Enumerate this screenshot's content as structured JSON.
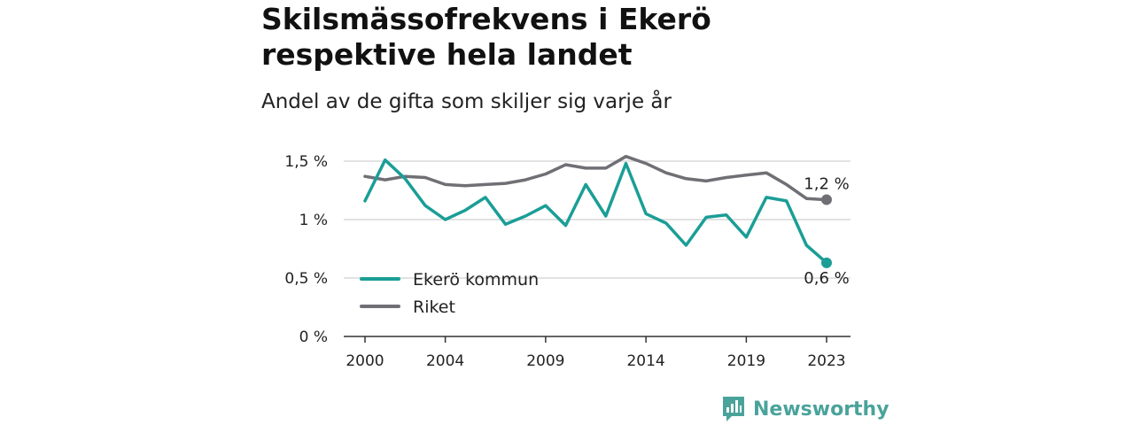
{
  "chart_data": {
    "type": "line",
    "title": "Skilsmässofrekvens i Ekerö respektive hela landet",
    "subtitle": "Andel av de gifta som skiljer sig varje år",
    "x": [
      2000,
      2001,
      2002,
      2003,
      2004,
      2005,
      2006,
      2007,
      2008,
      2009,
      2010,
      2011,
      2012,
      2013,
      2014,
      2015,
      2016,
      2017,
      2018,
      2019,
      2020,
      2021,
      2022,
      2023
    ],
    "x_ticks": [
      2000,
      2004,
      2009,
      2014,
      2019,
      2023
    ],
    "x_tick_labels": [
      "2000",
      "2004",
      "2009",
      "2014",
      "2019",
      "2023"
    ],
    "y_ticks": [
      0,
      0.5,
      1,
      1.5
    ],
    "y_tick_labels": [
      "0 %",
      "0,5 %",
      "1 %",
      "1,5 %"
    ],
    "ylim": [
      0,
      1.5
    ],
    "grid": true,
    "legend_position": "bottom-left",
    "series": [
      {
        "name": "Ekerö kommun",
        "color": "#1a9e96",
        "values": [
          1.16,
          1.51,
          1.35,
          1.12,
          1.0,
          1.08,
          1.19,
          0.96,
          1.03,
          1.12,
          0.95,
          1.3,
          1.03,
          1.48,
          1.05,
          0.97,
          0.78,
          1.02,
          1.04,
          0.85,
          1.19,
          1.16,
          0.78,
          0.63
        ],
        "end_label": "0,6 %"
      },
      {
        "name": "Riket",
        "color": "#6f6f75",
        "values": [
          1.37,
          1.34,
          1.37,
          1.36,
          1.3,
          1.29,
          1.3,
          1.31,
          1.34,
          1.39,
          1.47,
          1.44,
          1.44,
          1.54,
          1.48,
          1.4,
          1.35,
          1.33,
          1.36,
          1.38,
          1.4,
          1.3,
          1.18,
          1.17
        ],
        "end_label": "1,2 %"
      }
    ]
  },
  "brand": {
    "name": "Newsworthy",
    "icon": "newsworthy-logo-icon",
    "color": "#4aa39b"
  }
}
